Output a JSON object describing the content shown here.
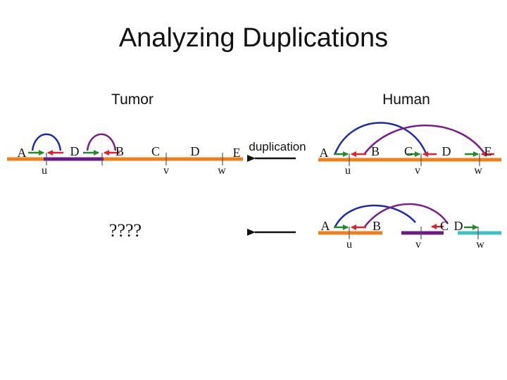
{
  "title": "Analyzing Duplications",
  "headers": {
    "tumor": "Tumor",
    "human": "Human"
  },
  "arrow_label": "duplication",
  "unknown": "????",
  "tumor": {
    "segments": [
      "A",
      "D",
      "B",
      "C",
      "D",
      "E"
    ],
    "adjacencies": [
      "u",
      "v",
      "w"
    ]
  },
  "human_top": {
    "segments": [
      "A",
      "B",
      "C",
      "D",
      "E"
    ],
    "adjacencies": [
      "u",
      "v",
      "w"
    ]
  },
  "human_bottom": {
    "segments": [
      "A",
      "B",
      "C",
      "D"
    ],
    "adjacencies": [
      "u",
      "v",
      "w"
    ]
  },
  "colors": {
    "orange": "#f07f1a",
    "purple": "#6b1a86",
    "teal": "#3cc0c8",
    "blue_arc": "#1b2ab0",
    "purple_arc": "#7a1e8a",
    "green_arrow": "#1f8a2a",
    "red_arrow": "#e0202a",
    "black": "#111111"
  }
}
